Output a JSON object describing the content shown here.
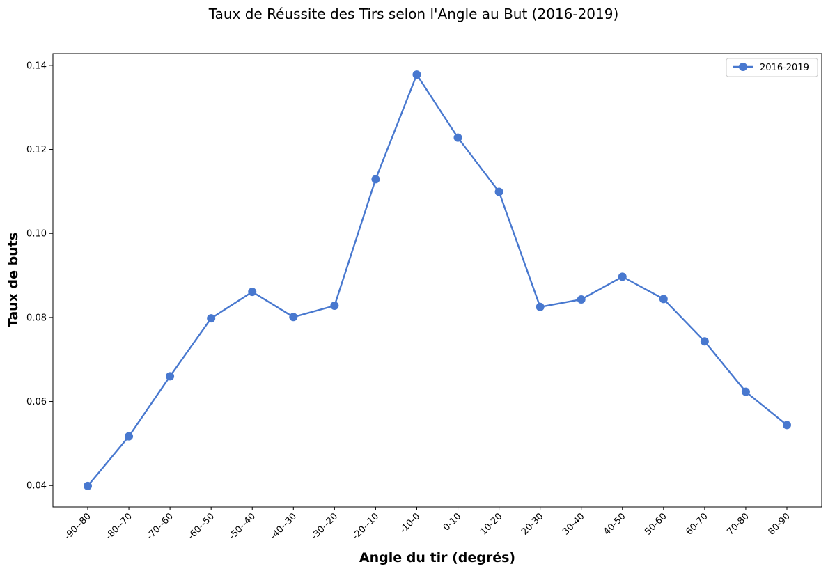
{
  "chart_data": {
    "type": "line",
    "title": "Taux de Réussite des Tirs selon l'Angle au But (2016-2019)",
    "xlabel": "Angle du tir (degrés)",
    "ylabel": "Taux de buts",
    "categories": [
      "-90--80",
      "-80--70",
      "-70--60",
      "-60--50",
      "-50--40",
      "-40--30",
      "-30--20",
      "-20--10",
      "-10-0",
      "0-10",
      "10-20",
      "20-30",
      "30-40",
      "40-50",
      "50-60",
      "60-70",
      "70-80",
      "80-90"
    ],
    "series": [
      {
        "name": "2016-2019",
        "color": "#4878cf",
        "values": [
          0.0399,
          0.0517,
          0.066,
          0.0798,
          0.0861,
          0.0801,
          0.0828,
          0.1129,
          0.1378,
          0.1228,
          0.1099,
          0.0825,
          0.0843,
          0.0897,
          0.0844,
          0.0743,
          0.0623,
          0.0544
        ]
      }
    ],
    "ylim": [
      0.0349,
      0.1428
    ],
    "yticks": [
      "0.04",
      "0.06",
      "0.08",
      "0.10",
      "0.12",
      "0.14"
    ],
    "ytick_values": [
      0.04,
      0.06,
      0.08,
      0.1,
      0.12,
      0.14
    ],
    "grid": false,
    "legend_position": "top-right",
    "marker": "circle"
  }
}
